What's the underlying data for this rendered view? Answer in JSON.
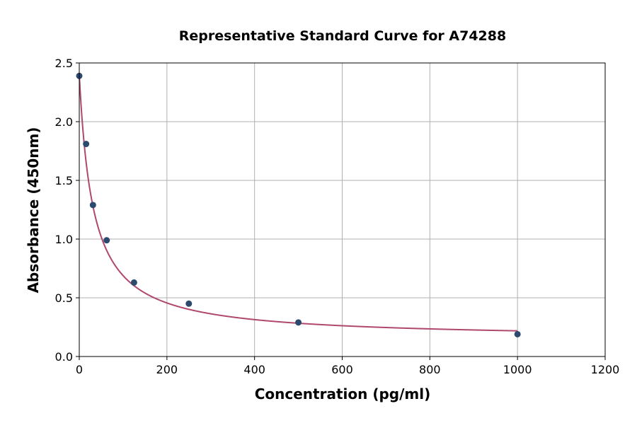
{
  "chart_data": {
    "type": "scatter",
    "title": "Representative Standard Curve for A74288",
    "xlabel": "Concentration (pg/ml)",
    "ylabel": "Absorbance (450nm)",
    "xlim": [
      0,
      1200
    ],
    "ylim": [
      0,
      2.5
    ],
    "xticks": [
      "0",
      "200",
      "400",
      "600",
      "800",
      "1000",
      "1200"
    ],
    "yticks": [
      "0.0",
      "0.5",
      "1.0",
      "1.5",
      "2.0",
      "2.5"
    ],
    "grid": true,
    "points": [
      {
        "x": 0,
        "y": 2.39
      },
      {
        "x": 15.6,
        "y": 1.81
      },
      {
        "x": 31.25,
        "y": 1.29
      },
      {
        "x": 62.5,
        "y": 0.99
      },
      {
        "x": 125,
        "y": 0.63
      },
      {
        "x": 250,
        "y": 0.45
      },
      {
        "x": 500,
        "y": 0.29
      },
      {
        "x": 1000,
        "y": 0.19
      }
    ],
    "fit_curve": "4PL",
    "colors": {
      "points": "#2c4a6e",
      "curve": "#b0476e",
      "grid": "#b0b0b0"
    }
  }
}
